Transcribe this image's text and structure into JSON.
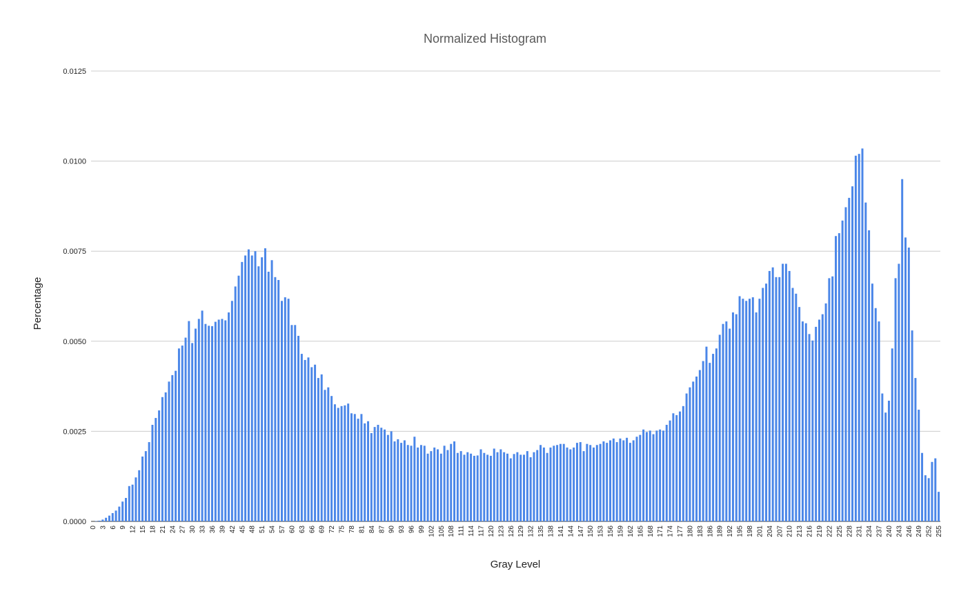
{
  "chart_data": {
    "type": "bar",
    "title": "Normalized Histogram",
    "xlabel": "Gray Level",
    "ylabel": "Percentage",
    "ylim": [
      0,
      0.0125
    ],
    "yticks": [
      "0.0000",
      "0.0025",
      "0.0050",
      "0.0075",
      "0.0100",
      "0.0125"
    ],
    "grid": true,
    "legend": "none",
    "bar_color": "#4a86e8",
    "x_start": 0,
    "x_end": 255,
    "x_tick_step": 3,
    "values": [
      0.0,
      1e-05,
      2e-05,
      5e-05,
      0.0001,
      0.00016,
      0.00023,
      0.0003,
      0.00041,
      0.00055,
      0.00065,
      0.00098,
      0.00102,
      0.00122,
      0.00142,
      0.0018,
      0.00195,
      0.0022,
      0.00268,
      0.00287,
      0.00308,
      0.00345,
      0.00358,
      0.00388,
      0.00406,
      0.00418,
      0.0048,
      0.00488,
      0.0051,
      0.00556,
      0.00495,
      0.00535,
      0.00562,
      0.00585,
      0.00548,
      0.00543,
      0.00542,
      0.00554,
      0.0056,
      0.00562,
      0.00558,
      0.0058,
      0.00612,
      0.00652,
      0.00682,
      0.0072,
      0.00738,
      0.00755,
      0.00738,
      0.0075,
      0.00708,
      0.00733,
      0.00758,
      0.00693,
      0.00725,
      0.00678,
      0.0067,
      0.00612,
      0.00622,
      0.00618,
      0.00545,
      0.00545,
      0.00515,
      0.00465,
      0.00448,
      0.00455,
      0.00428,
      0.00435,
      0.00398,
      0.00408,
      0.00365,
      0.00372,
      0.00348,
      0.00325,
      0.00315,
      0.0032,
      0.00322,
      0.00327,
      0.003,
      0.00298,
      0.00285,
      0.00298,
      0.00272,
      0.00278,
      0.00245,
      0.00262,
      0.00268,
      0.0026,
      0.00255,
      0.0024,
      0.0025,
      0.00222,
      0.00228,
      0.00218,
      0.00225,
      0.00212,
      0.0021,
      0.00235,
      0.00205,
      0.00212,
      0.0021,
      0.00188,
      0.00195,
      0.00205,
      0.002,
      0.00188,
      0.0021,
      0.00198,
      0.00215,
      0.00222,
      0.0019,
      0.00195,
      0.00185,
      0.00192,
      0.00188,
      0.00182,
      0.00183,
      0.002,
      0.0019,
      0.00185,
      0.00182,
      0.00202,
      0.00192,
      0.002,
      0.00192,
      0.00188,
      0.00175,
      0.00187,
      0.00192,
      0.00185,
      0.00185,
      0.00195,
      0.00178,
      0.00192,
      0.00198,
      0.00212,
      0.00205,
      0.0019,
      0.00205,
      0.0021,
      0.00212,
      0.00215,
      0.00215,
      0.00205,
      0.002,
      0.00205,
      0.00218,
      0.0022,
      0.00195,
      0.00215,
      0.00212,
      0.00205,
      0.00212,
      0.00215,
      0.00222,
      0.00218,
      0.00225,
      0.0023,
      0.0022,
      0.0023,
      0.00225,
      0.00232,
      0.00218,
      0.00225,
      0.00235,
      0.0024,
      0.00255,
      0.00248,
      0.00252,
      0.00242,
      0.00252,
      0.00255,
      0.00252,
      0.00268,
      0.0028,
      0.003,
      0.00295,
      0.00305,
      0.0032,
      0.00355,
      0.00372,
      0.00388,
      0.00402,
      0.0042,
      0.00445,
      0.00485,
      0.0044,
      0.00465,
      0.0048,
      0.00518,
      0.00548,
      0.00555,
      0.00535,
      0.0058,
      0.00575,
      0.00625,
      0.00618,
      0.00612,
      0.00618,
      0.00622,
      0.0058,
      0.00618,
      0.00648,
      0.0066,
      0.00695,
      0.00705,
      0.00678,
      0.00678,
      0.00715,
      0.00715,
      0.00695,
      0.00648,
      0.00632,
      0.00595,
      0.00555,
      0.0055,
      0.0052,
      0.00502,
      0.0054,
      0.0056,
      0.00575,
      0.00605,
      0.00675,
      0.0068,
      0.00792,
      0.008,
      0.00835,
      0.00872,
      0.00898,
      0.0093,
      0.01015,
      0.0102,
      0.01035,
      0.00885,
      0.00808,
      0.0066,
      0.00592,
      0.00555,
      0.00355,
      0.00302,
      0.00335,
      0.0048,
      0.00675,
      0.00715,
      0.0095,
      0.00788,
      0.0076,
      0.0053,
      0.00398,
      0.0031,
      0.0019,
      0.00128,
      0.0012,
      0.00165,
      0.00175,
      0.00082
    ]
  }
}
